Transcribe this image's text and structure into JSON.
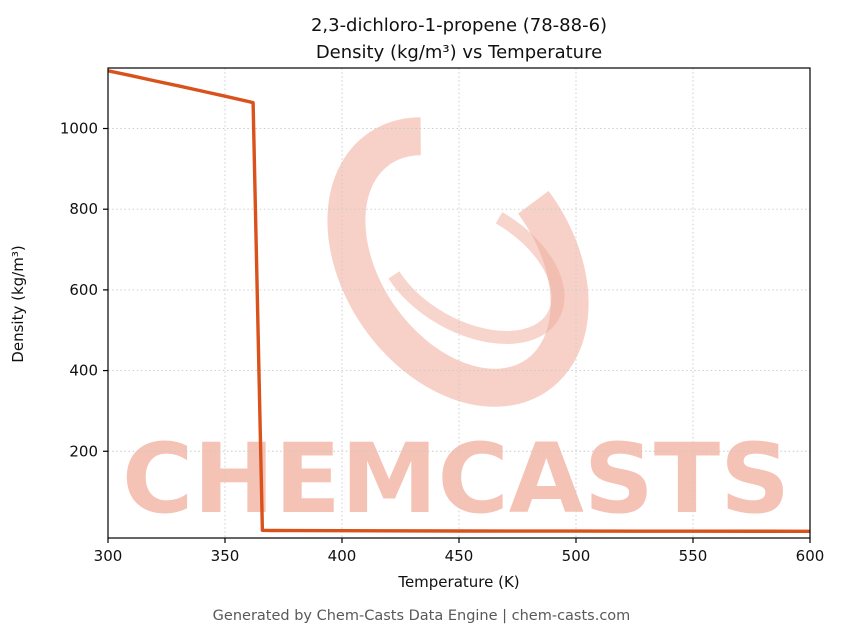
{
  "title": {
    "line1": "2,3-dichloro-1-propene (78-88-6)",
    "line2": "Density (kg/m³) vs Temperature"
  },
  "footer": "Generated by Chem-Casts Data Engine | chem-casts.com",
  "watermark": {
    "text": "CHEMCASTS",
    "text_color": "#f5c3b6",
    "logo_color": "#f0ab9b"
  },
  "chart_data": {
    "type": "line",
    "title": "2,3-dichloro-1-propene (78-88-6) Density (kg/m³) vs Temperature",
    "xlabel": "Temperature (K)",
    "ylabel": "Density (kg/m³)",
    "xlim": [
      300,
      600
    ],
    "ylim": [
      -15,
      1150
    ],
    "xticks": [
      300,
      350,
      400,
      450,
      500,
      550,
      600
    ],
    "yticks": [
      200,
      400,
      600,
      800,
      1000
    ],
    "grid": true,
    "grid_color": "#c8c8c8",
    "line_color": "#d9521c",
    "axis_color": "#000000",
    "legend": "none",
    "series": [
      {
        "name": "Density",
        "x": [
          300,
          310,
          320,
          330,
          340,
          350,
          360,
          362,
          366,
          370,
          380,
          400,
          450,
          500,
          550,
          600
        ],
        "y": [
          1143,
          1131,
          1118,
          1106,
          1093,
          1080,
          1067,
          1064,
          4,
          3.6,
          3.3,
          3.0,
          2.4,
          2.0,
          1.8,
          1.6
        ]
      }
    ]
  }
}
